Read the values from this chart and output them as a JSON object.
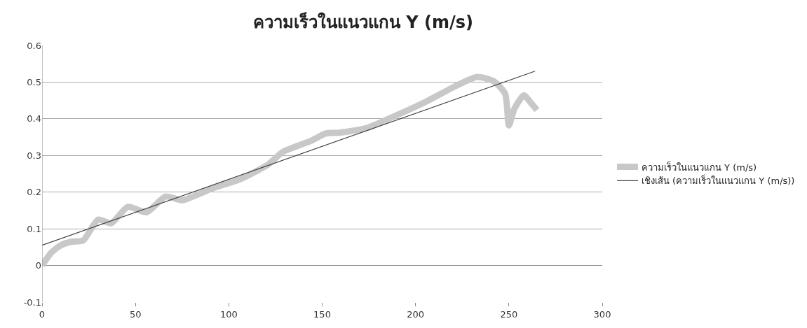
{
  "chart_data": {
    "type": "line",
    "title": "ความเร็วในแนวแกน Y (m/s)",
    "xlim": [
      0,
      300
    ],
    "xticks": [
      0,
      50,
      100,
      150,
      200,
      250,
      300
    ],
    "ylim": [
      -0.1,
      0.6
    ],
    "yticks": [
      -0.1,
      0,
      0.1,
      0.2,
      0.3,
      0.4,
      0.5,
      0.6
    ],
    "grid": "y",
    "legend": "right",
    "series": [
      {
        "name": "ความเร็วในแนวแกน Y (m/s)",
        "color": "#c8c8c8",
        "x": [
          0,
          5,
          10,
          16,
          22,
          30,
          37,
          46,
          56,
          66,
          75,
          91,
          106,
          121,
          129,
          144,
          152,
          159,
          174,
          190,
          205,
          221,
          233,
          242,
          248,
          250,
          253,
          258,
          262,
          265
        ],
        "values": [
          0,
          0.035,
          0.055,
          0.065,
          0.068,
          0.125,
          0.115,
          0.16,
          0.145,
          0.188,
          0.178,
          0.21,
          0.235,
          0.275,
          0.31,
          0.34,
          0.36,
          0.362,
          0.375,
          0.41,
          0.445,
          0.488,
          0.514,
          0.502,
          0.468,
          0.382,
          0.428,
          0.464,
          0.442,
          0.424
        ]
      },
      {
        "name": "เชิงเส้น (ความเร็วในแนวแกน Y (m/s))",
        "color": "#404040",
        "x": [
          0,
          264
        ],
        "values": [
          0.055,
          0.53
        ]
      }
    ]
  }
}
